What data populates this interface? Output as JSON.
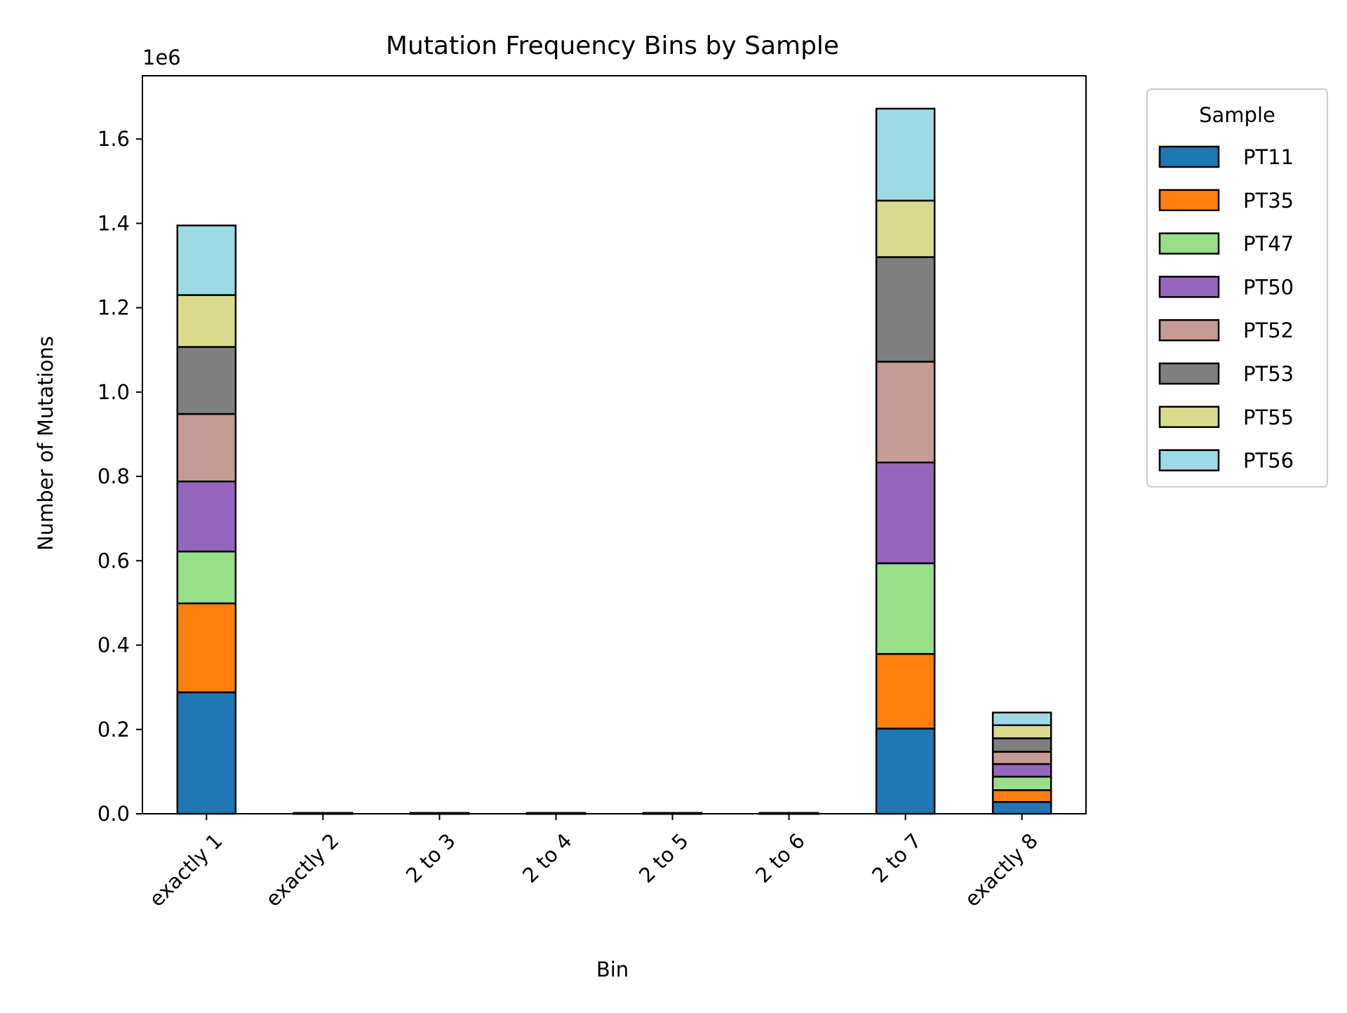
{
  "chart_data": {
    "type": "bar",
    "stacked": true,
    "title": "Mutation Frequency Bins by Sample",
    "xlabel": "Bin",
    "ylabel": "Number of Mutations",
    "y_multiplier_label": "1e6",
    "categories": [
      "exactly 1",
      "exactly 2",
      "2 to 3",
      "2 to 4",
      "2 to 5",
      "2 to 6",
      "2 to 7",
      "exactly 8"
    ],
    "ylim": [
      0,
      1750000
    ],
    "yticks": [
      0,
      200000,
      400000,
      600000,
      800000,
      1000000,
      1200000,
      1400000,
      1600000
    ],
    "ytick_labels": [
      "0.0",
      "0.2",
      "0.4",
      "0.6",
      "0.8",
      "1.0",
      "1.2",
      "1.4",
      "1.6"
    ],
    "grid": false,
    "legend": {
      "title": "Sample",
      "position": "outside-right-top"
    },
    "bar_edge_color": "#000000",
    "series": [
      {
        "name": "PT11",
        "color": "#1f77b4",
        "values": [
          288000,
          0,
          0,
          0,
          0,
          0,
          202000,
          28000
        ]
      },
      {
        "name": "PT35",
        "color": "#ff7f0e",
        "values": [
          211000,
          0,
          0,
          0,
          0,
          0,
          177000,
          28000
        ]
      },
      {
        "name": "PT47",
        "color": "#98df8a",
        "values": [
          123000,
          0,
          0,
          0,
          0,
          0,
          215000,
          32000
        ]
      },
      {
        "name": "PT50",
        "color": "#9467bd",
        "values": [
          166000,
          0,
          0,
          0,
          0,
          0,
          239000,
          30000
        ]
      },
      {
        "name": "PT52",
        "color": "#c49c94",
        "values": [
          160000,
          0,
          0,
          0,
          0,
          0,
          239000,
          29000
        ]
      },
      {
        "name": "PT53",
        "color": "#7f7f7f",
        "values": [
          159000,
          0,
          0,
          0,
          0,
          0,
          248000,
          32000
        ]
      },
      {
        "name": "PT55",
        "color": "#dbdb8d",
        "values": [
          123000,
          0,
          0,
          0,
          0,
          0,
          134000,
          31000
        ]
      },
      {
        "name": "PT56",
        "color": "#9edae5",
        "values": [
          165000,
          0,
          0,
          0,
          0,
          0,
          218000,
          30000
        ]
      }
    ]
  }
}
